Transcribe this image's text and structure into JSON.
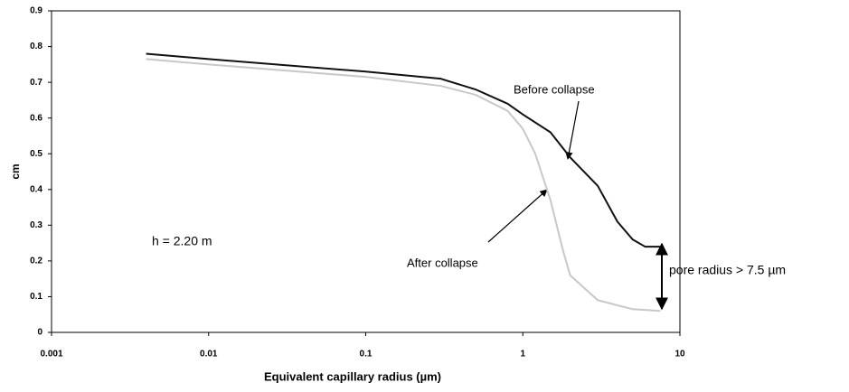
{
  "chart_data": {
    "type": "line",
    "xlabel": "Equivalent capillary radius (µm)",
    "ylabel": "cm",
    "xscale": "log",
    "xlim": [
      0.001,
      10
    ],
    "xticks": [
      0.001,
      0.01,
      0.1,
      1,
      10
    ],
    "ylim": [
      0,
      0.9
    ],
    "yticks": [
      0,
      0.1,
      0.2,
      0.3,
      0.4,
      0.5,
      0.6,
      0.7,
      0.8,
      0.9
    ],
    "series": [
      {
        "name": "Before collapse",
        "color": "#111111",
        "x": [
          0.004,
          0.01,
          0.1,
          0.3,
          0.5,
          0.8,
          1,
          1.5,
          2,
          3,
          4,
          5,
          6,
          7.5
        ],
        "values": [
          0.78,
          0.765,
          0.73,
          0.71,
          0.68,
          0.64,
          0.61,
          0.56,
          0.49,
          0.41,
          0.31,
          0.26,
          0.24,
          0.24
        ]
      },
      {
        "name": "After collapse",
        "color": "#c8c8c8",
        "x": [
          0.004,
          0.01,
          0.1,
          0.3,
          0.5,
          0.8,
          1,
          1.2,
          1.5,
          1.8,
          2,
          3,
          5,
          7.5
        ],
        "values": [
          0.765,
          0.75,
          0.715,
          0.69,
          0.665,
          0.62,
          0.57,
          0.5,
          0.37,
          0.23,
          0.16,
          0.09,
          0.065,
          0.06
        ]
      }
    ],
    "annotations": [
      "h = 2.20 m",
      "pore radius > 7.5 µm"
    ]
  }
}
